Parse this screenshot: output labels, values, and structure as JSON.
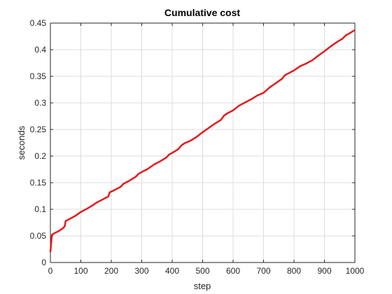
{
  "chart_data": {
    "type": "line",
    "title": "Cumulative cost",
    "xlabel": "step",
    "ylabel": "seconds",
    "xlim": [
      0,
      1000
    ],
    "ylim": [
      0,
      0.45
    ],
    "xticks": [
      0,
      100,
      200,
      300,
      400,
      500,
      600,
      700,
      800,
      900,
      1000
    ],
    "yticks": [
      0,
      0.05,
      0.1,
      0.15,
      0.2,
      0.25,
      0.3,
      0.35,
      0.4,
      0.45
    ],
    "grid": true,
    "series": [
      {
        "color": "#e41a1c",
        "x": [
          0,
          5,
          10,
          20,
          30,
          40,
          47,
          50,
          60,
          80,
          95,
          100,
          120,
          140,
          150,
          170,
          190,
          195,
          210,
          230,
          240,
          260,
          280,
          290,
          300,
          320,
          340,
          360,
          380,
          390,
          400,
          420,
          430,
          440,
          460,
          480,
          500,
          520,
          540,
          560,
          570,
          580,
          600,
          620,
          640,
          660,
          680,
          700,
          720,
          740,
          760,
          770,
          780,
          800,
          820,
          840,
          860,
          880,
          900,
          920,
          940,
          960,
          970,
          980,
          1000
        ],
        "y": [
          0.02,
          0.052,
          0.054,
          0.057,
          0.06,
          0.064,
          0.068,
          0.078,
          0.081,
          0.087,
          0.093,
          0.095,
          0.101,
          0.108,
          0.112,
          0.118,
          0.124,
          0.132,
          0.136,
          0.142,
          0.148,
          0.154,
          0.161,
          0.167,
          0.17,
          0.176,
          0.184,
          0.19,
          0.197,
          0.203,
          0.206,
          0.213,
          0.22,
          0.224,
          0.229,
          0.236,
          0.245,
          0.253,
          0.261,
          0.268,
          0.276,
          0.28,
          0.286,
          0.295,
          0.301,
          0.307,
          0.314,
          0.319,
          0.329,
          0.337,
          0.345,
          0.352,
          0.355,
          0.361,
          0.369,
          0.374,
          0.38,
          0.389,
          0.397,
          0.406,
          0.414,
          0.421,
          0.427,
          0.43,
          0.437
        ]
      }
    ]
  }
}
